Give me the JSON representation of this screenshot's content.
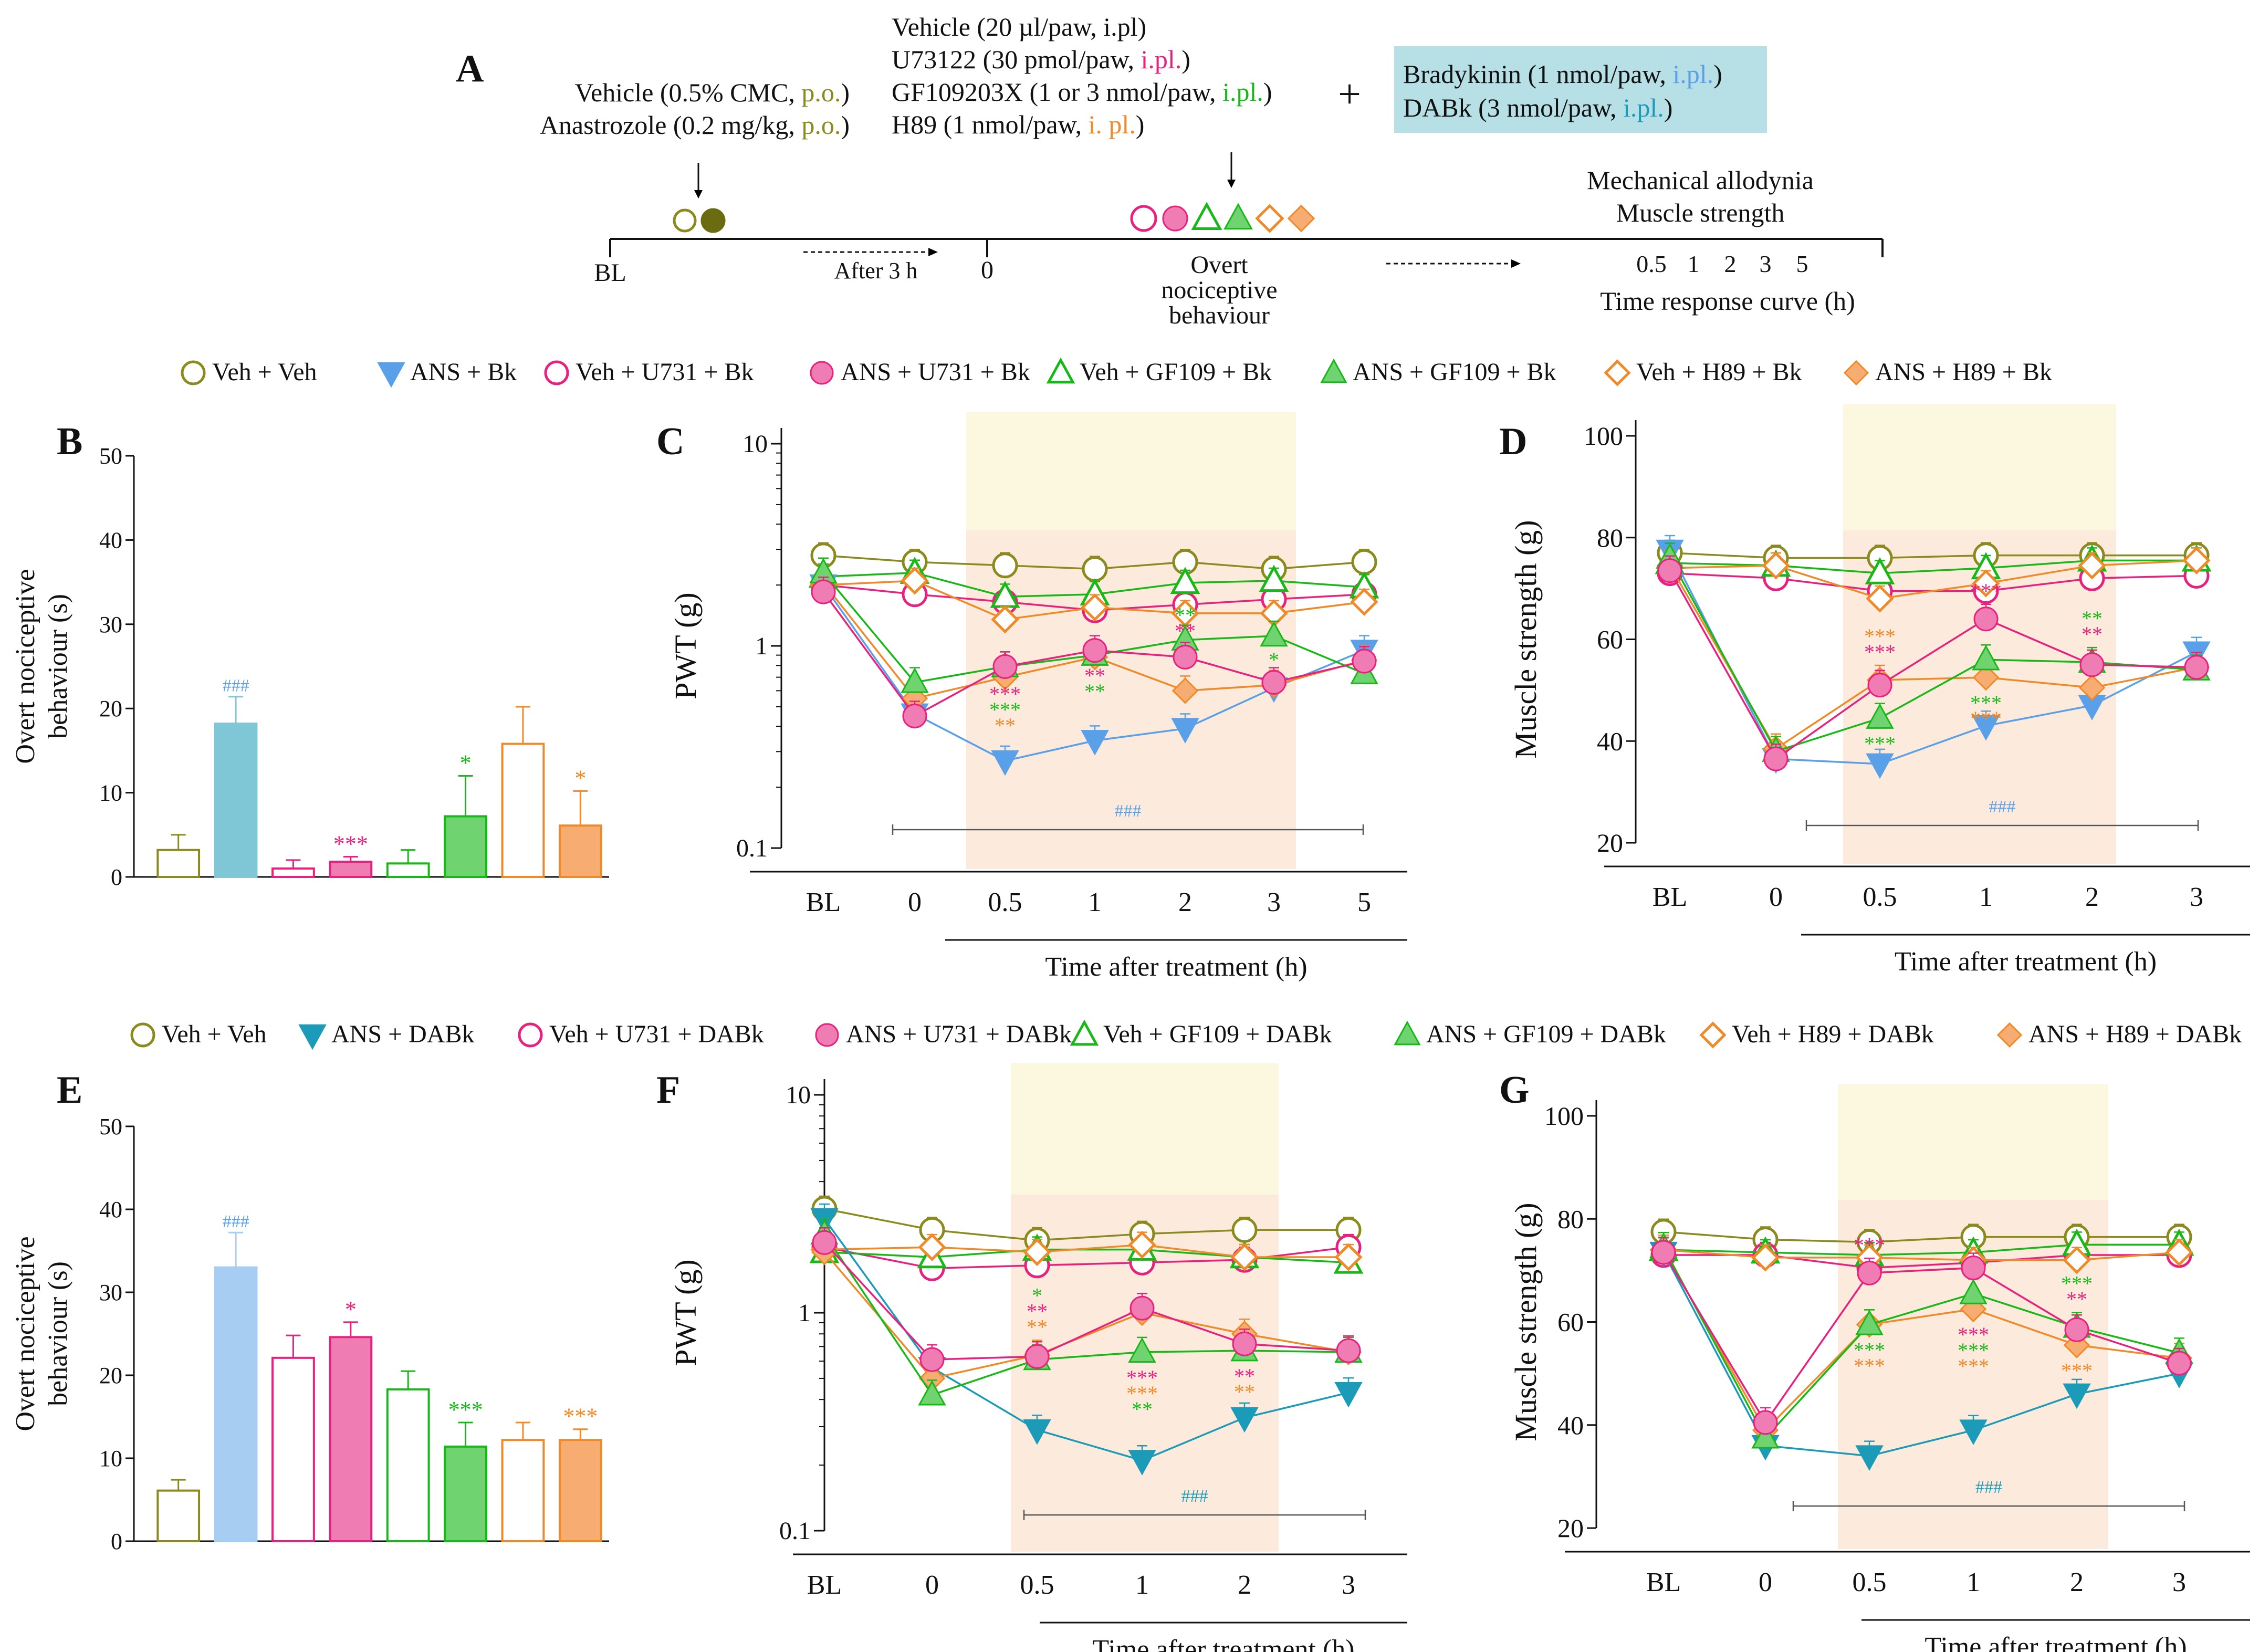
{
  "colors": {
    "olive": "#8a8a1e",
    "olive_dark": "#6b6b12",
    "blue": "#5aa0e8",
    "teal": "#1b9bb8",
    "bar_teal": "#7fc6d6",
    "bar_blue": "#a8cdf2",
    "pink": "#e8217f",
    "pink_fill": "#f07cb4",
    "green": "#18b818",
    "green_fill": "#6fd46f",
    "orange": "#f08a28",
    "orange_fill": "#f7ad72",
    "shade_yellow": "#fbf8df",
    "shade_peach": "#fcebdc",
    "scheme_box": "#b7e0e6"
  },
  "scheme": {
    "panel_letter": "A",
    "left_lines": [
      "Vehicle (0.5% CMC, ",
      "p.o.",
      ")",
      "Anastrozole (0.2  mg/kg, ",
      "p.o.",
      ")"
    ],
    "mid_lines": [
      {
        "pre": "Vehicle (20 µl/paw, i.pl)",
        "route": "",
        "post": ""
      },
      {
        "pre": "U73122 (30 pmol/paw, ",
        "route": "i.pl.",
        "post": ")"
      },
      {
        "pre": "GF109203X (1 or 3 nmol/paw, ",
        "route": "i.pl.",
        "post": ")"
      },
      {
        "pre": "H89 (1 nmol/paw, ",
        "route": "i. pl.",
        "post": ")"
      }
    ],
    "plus": "+",
    "box_lines": [
      {
        "pre": "Bradykinin (1 nmol/paw, ",
        "route": "i.pl.",
        "post": ")"
      },
      {
        "pre": "DABk (3 nmol/paw, ",
        "route": "i.pl.",
        "post": ")"
      }
    ],
    "bl": "BL",
    "after": "After 3 h",
    "zero": "0",
    "overt": [
      "Overt",
      "nociceptive",
      "behaviour"
    ],
    "right_lines": [
      "Mechanical allodynia",
      "Muscle strength"
    ],
    "times": [
      "0.5",
      "1",
      "2",
      "3",
      "5"
    ],
    "curve": "Time response curve (h)"
  },
  "legend_bk": [
    "Veh + Veh",
    "ANS  + Bk",
    "Veh + U731 + Bk",
    "ANS + U731 + Bk",
    "Veh + GF109 + Bk",
    "ANS + GF109 + Bk",
    "Veh + H89 + Bk",
    "ANS + H89 + Bk"
  ],
  "legend_dabk": [
    "Veh + Veh",
    "ANS  + DABk",
    "Veh + U731 + DABk",
    "ANS + U731 + DABk",
    "Veh + GF109 + DABk",
    "ANS + GF109 + DABk",
    "Veh + H89 + DABk",
    "ANS + H89 + DABk"
  ],
  "chart_data": [
    {
      "panel": "B",
      "type": "bar",
      "ylabel": "Overt nociceptive behaviour (s)",
      "ylim": [
        0,
        50
      ],
      "yticks": [
        0,
        10,
        20,
        30,
        40,
        50
      ],
      "categories": [
        "Veh + Veh",
        "ANS + Bk",
        "Veh + U731 + Bk",
        "ANS + U731 + Bk",
        "Veh + GF109 + Bk",
        "ANS + GF109 + Bk",
        "Veh + H89 + Bk",
        "ANS + H89 + Bk"
      ],
      "values": [
        3.2,
        18.2,
        1.0,
        1.8,
        1.6,
        7.2,
        15.8,
        6.1
      ],
      "errors": [
        1.8,
        3.2,
        1.0,
        0.6,
        1.6,
        4.8,
        4.4,
        4.1
      ],
      "annotations": [
        "",
        "###",
        "",
        "***",
        "",
        "*",
        "",
        "*"
      ]
    },
    {
      "panel": "C",
      "type": "line",
      "yscale": "log",
      "ylabel": "PWT (g)",
      "xlabel": "Time after treatment (h)",
      "ylim": [
        0.1,
        10
      ],
      "yticks": [
        "0.1",
        "1",
        "10"
      ],
      "x": [
        "BL",
        "0",
        "0.5",
        "1",
        "2",
        "3",
        "5"
      ],
      "series": [
        {
          "name": "Veh + Veh",
          "values": [
            2.8,
            2.6,
            2.5,
            2.4,
            2.6,
            2.4,
            2.6
          ]
        },
        {
          "name": "ANS + Bk",
          "values": [
            2.0,
            0.46,
            0.27,
            0.34,
            0.39,
            0.62,
            0.95
          ]
        },
        {
          "name": "Veh + U731 + Bk",
          "values": [
            2.0,
            1.8,
            1.65,
            1.5,
            1.6,
            1.7,
            1.8
          ]
        },
        {
          "name": "ANS + U731 + Bk",
          "values": [
            1.85,
            0.45,
            0.79,
            0.95,
            0.88,
            0.66,
            0.84
          ]
        },
        {
          "name": "Veh + GF109 + Bk",
          "values": [
            2.2,
            2.3,
            1.75,
            1.8,
            2.05,
            2.1,
            1.95
          ]
        },
        {
          "name": "ANS + GF109 + Bk",
          "values": [
            2.3,
            0.66,
            0.79,
            0.9,
            1.07,
            1.12,
            0.73
          ]
        },
        {
          "name": "Veh + H89 + Bk",
          "values": [
            2.0,
            2.1,
            1.35,
            1.55,
            1.45,
            1.45,
            1.65
          ]
        },
        {
          "name": "ANS + H89 + Bk",
          "values": [
            2.05,
            0.55,
            0.7,
            0.88,
            0.6,
            0.64,
            0.85
          ]
        }
      ],
      "annotation": "###"
    },
    {
      "panel": "D",
      "type": "line",
      "ylabel": "Muscle strength (g)",
      "xlabel": "Time after treatment (h)",
      "ylim": [
        20,
        100
      ],
      "yticks": [
        20,
        40,
        60,
        80,
        100
      ],
      "x": [
        "BL",
        "0",
        "0.5",
        "1",
        "2",
        "3"
      ],
      "series": [
        {
          "name": "Veh + Veh",
          "values": [
            77,
            76,
            76,
            76.5,
            76.5,
            76.5
          ]
        },
        {
          "name": "ANS + Bk",
          "values": [
            77.5,
            36.5,
            35.5,
            43,
            47,
            57.5
          ]
        },
        {
          "name": "Veh + U731 + Bk",
          "values": [
            73,
            72,
            69.5,
            69.5,
            72,
            72.5
          ]
        },
        {
          "name": "ANS + U731 + Bk",
          "values": [
            73.5,
            36.5,
            51,
            64,
            55,
            54.5
          ]
        },
        {
          "name": "Veh + GF109 + Bk",
          "values": [
            75,
            74.5,
            73,
            74,
            75.5,
            75.5
          ]
        },
        {
          "name": "ANS + GF109 + Bk",
          "values": [
            76,
            38,
            44.5,
            56,
            55.5,
            54
          ]
        },
        {
          "name": "Veh + H89 + Bk",
          "values": [
            74,
            74.5,
            68,
            71,
            74.5,
            75.5
          ]
        },
        {
          "name": "ANS + H89 + Bk",
          "values": [
            74.5,
            38.5,
            52,
            52.5,
            50.5,
            54.5
          ]
        }
      ],
      "annotation": "###"
    },
    {
      "panel": "E",
      "type": "bar",
      "ylabel": "Overt nociceptive behaviour (s)",
      "ylim": [
        0,
        50
      ],
      "yticks": [
        0,
        10,
        20,
        30,
        40,
        50
      ],
      "categories": [
        "Veh + Veh",
        "ANS + DABk",
        "Veh + U731 + DABk",
        "ANS + U731 + DABk",
        "Veh + GF109 + DABk",
        "ANS + GF109 + DABk",
        "Veh + H89 + DABk",
        "ANS + H89 + DABk"
      ],
      "values": [
        6.1,
        33.0,
        22.1,
        24.6,
        18.3,
        11.4,
        12.2,
        12.2
      ],
      "errors": [
        1.3,
        4.2,
        2.7,
        1.8,
        2.2,
        2.9,
        2.1,
        1.3
      ],
      "annotations": [
        "",
        "###",
        "",
        "*",
        "",
        "***",
        "",
        "***"
      ]
    },
    {
      "panel": "F",
      "type": "line",
      "yscale": "log",
      "ylabel": "PWT (g)",
      "xlabel": "Time after treatment (h)",
      "ylim": [
        0.1,
        10
      ],
      "yticks": [
        "0.1",
        "1",
        "10"
      ],
      "x": [
        "BL",
        "0",
        "0.5",
        "1",
        "2",
        "3"
      ],
      "series": [
        {
          "name": "Veh + Veh",
          "values": [
            3.0,
            2.4,
            2.15,
            2.3,
            2.4,
            2.4
          ]
        },
        {
          "name": "ANS + DABk",
          "values": [
            2.7,
            0.56,
            0.29,
            0.21,
            0.33,
            0.43
          ]
        },
        {
          "name": "Veh + U731 + DABk",
          "values": [
            2.0,
            1.6,
            1.65,
            1.7,
            1.75,
            2.0
          ]
        },
        {
          "name": "ANS + U731 + DABk",
          "values": [
            2.1,
            0.61,
            0.63,
            1.05,
            0.72,
            0.67
          ]
        },
        {
          "name": "Veh + GF109 + DABk",
          "values": [
            1.9,
            1.8,
            1.95,
            1.95,
            1.8,
            1.7
          ]
        },
        {
          "name": "ANS + GF109 + DABk",
          "values": [
            2.3,
            0.42,
            0.61,
            0.66,
            0.67,
            0.66
          ]
        },
        {
          "name": "Veh + H89 + DABk",
          "values": [
            1.95,
            2.0,
            1.9,
            2.05,
            1.8,
            1.8
          ]
        },
        {
          "name": "ANS + H89 + DABk",
          "values": [
            1.9,
            0.5,
            0.64,
            1.0,
            0.8,
            0.66
          ]
        }
      ],
      "annotation": "###"
    },
    {
      "panel": "G",
      "type": "line",
      "ylabel": "Muscle strength (g)",
      "xlabel": "Time after treatment (h)",
      "ylim": [
        20,
        100
      ],
      "yticks": [
        20,
        40,
        60,
        80,
        100
      ],
      "x": [
        "BL",
        "0",
        "0.5",
        "1",
        "2",
        "3"
      ],
      "series": [
        {
          "name": "Veh + Veh",
          "values": [
            77.5,
            76,
            75.5,
            76.5,
            76.5,
            76.5
          ]
        },
        {
          "name": "ANS + DABk",
          "values": [
            73.5,
            36,
            34,
            39,
            46,
            50
          ]
        },
        {
          "name": "Veh + U731 + DABk",
          "values": [
            73,
            73,
            70.5,
            71.5,
            73,
            73
          ]
        },
        {
          "name": "ANS + U731 + DABk",
          "values": [
            73.5,
            40.5,
            69.5,
            70.5,
            58.5,
            52
          ]
        },
        {
          "name": "Veh + GF109 + DABk",
          "values": [
            74,
            73.5,
            73,
            73.5,
            75,
            75
          ]
        },
        {
          "name": "ANS + GF109 + DABk",
          "values": [
            74.5,
            37.5,
            59.5,
            65.5,
            59,
            54
          ]
        },
        {
          "name": "Veh + H89 + DABk",
          "values": [
            74,
            72.5,
            72.5,
            72,
            72,
            73.5
          ]
        },
        {
          "name": "ANS + H89 + DABk",
          "values": [
            74,
            39,
            59.5,
            62.5,
            55.5,
            53
          ]
        }
      ],
      "annotation": "###"
    }
  ],
  "stars_c": [
    {
      "x": "0.5",
      "lines": [
        [
          "***",
          "pink"
        ],
        [
          "***",
          "green"
        ],
        [
          "**",
          "orange"
        ]
      ]
    },
    {
      "x": "1",
      "lines": [
        [
          "**",
          "pink"
        ],
        [
          "**",
          "green"
        ]
      ]
    },
    {
      "x": "2",
      "lines": [
        [
          "**",
          "green"
        ],
        [
          "**",
          "pink"
        ]
      ]
    },
    {
      "x": "3",
      "lines": [
        [
          "*",
          "green"
        ]
      ]
    }
  ],
  "stars_d": [
    {
      "x": "0.5",
      "lines": [
        [
          "***",
          "orange"
        ],
        [
          "***",
          "pink"
        ]
      ],
      "pos": "above"
    },
    {
      "x": "0.5",
      "lines": [
        [
          "***",
          "green"
        ]
      ],
      "pos": "below"
    },
    {
      "x": "1",
      "lines": [
        [
          "***",
          "pink"
        ]
      ],
      "pos": "above"
    },
    {
      "x": "1",
      "lines": [
        [
          "***",
          "green"
        ],
        [
          "***",
          "orange"
        ]
      ],
      "pos": "below"
    },
    {
      "x": "2",
      "lines": [
        [
          "**",
          "green"
        ],
        [
          "**",
          "pink"
        ]
      ],
      "pos": "above"
    }
  ],
  "stars_f": [
    {
      "x": "0.5",
      "lines": [
        [
          "*",
          "green"
        ],
        [
          "**",
          "pink"
        ],
        [
          "**",
          "orange"
        ]
      ],
      "pos": "above"
    },
    {
      "x": "1",
      "lines": [
        [
          "***",
          "pink"
        ],
        [
          "***",
          "orange"
        ],
        [
          "**",
          "green"
        ]
      ],
      "pos": "below"
    },
    {
      "x": "2",
      "lines": [
        [
          "**",
          "pink"
        ],
        [
          "**",
          "orange"
        ]
      ],
      "pos": "below"
    }
  ],
  "stars_g": [
    {
      "x": "0.5",
      "lines": [
        [
          "***",
          "pink"
        ]
      ],
      "pos": "above"
    },
    {
      "x": "0.5",
      "lines": [
        [
          "***",
          "green"
        ],
        [
          "***",
          "orange"
        ]
      ],
      "pos": "below"
    },
    {
      "x": "1",
      "lines": [
        [
          "***",
          "pink"
        ],
        [
          "***",
          "green"
        ],
        [
          "***",
          "orange"
        ]
      ],
      "pos": "below"
    },
    {
      "x": "2",
      "lines": [
        [
          "***",
          "green"
        ],
        [
          "**",
          "pink"
        ]
      ],
      "pos": "above"
    },
    {
      "x": "2",
      "lines": [
        [
          "***",
          "orange"
        ]
      ],
      "pos": "below"
    }
  ]
}
